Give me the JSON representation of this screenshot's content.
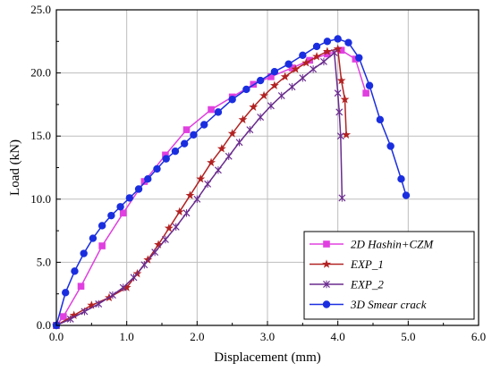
{
  "chart_data": {
    "type": "line",
    "title": "",
    "xlabel": "Displacement (mm)",
    "ylabel": "Load (kN)",
    "xlim": [
      0,
      6
    ],
    "ylim": [
      0,
      25
    ],
    "x_ticks": [
      0,
      1,
      2,
      3,
      4,
      5,
      6
    ],
    "y_ticks": [
      0,
      5,
      10,
      15,
      20,
      25
    ],
    "x_tick_labels": [
      "0.0",
      "1.0",
      "2.0",
      "3.0",
      "4.0",
      "5.0",
      "6.0"
    ],
    "y_tick_labels": [
      "0.0",
      "5.0",
      "10.0",
      "15.0",
      "20.0",
      "25.0"
    ],
    "grid": true,
    "legend_position": "bottom-right",
    "series": [
      {
        "name": "2D Hashin+CZM",
        "color": "#e040e0",
        "marker": "square",
        "x": [
          0.0,
          0.1,
          0.35,
          0.65,
          0.95,
          1.25,
          1.55,
          1.85,
          2.2,
          2.5,
          2.8,
          3.05,
          3.35,
          3.6,
          3.85,
          4.05,
          4.25,
          4.4
        ],
        "y": [
          0.0,
          0.7,
          3.1,
          6.3,
          8.9,
          11.4,
          13.5,
          15.5,
          17.1,
          18.1,
          19.1,
          19.7,
          20.4,
          21.0,
          21.5,
          21.8,
          21.1,
          18.4
        ]
      },
      {
        "name": "EXP_1",
        "color": "#b22222",
        "marker": "star",
        "x": [
          0.0,
          0.25,
          0.5,
          0.75,
          1.0,
          1.15,
          1.3,
          1.45,
          1.6,
          1.75,
          1.9,
          2.05,
          2.2,
          2.35,
          2.5,
          2.65,
          2.8,
          2.95,
          3.1,
          3.25,
          3.4,
          3.55,
          3.7,
          3.85,
          4.0,
          4.05,
          4.1,
          4.12
        ],
        "y": [
          0.0,
          0.8,
          1.6,
          2.2,
          3.0,
          4.1,
          5.2,
          6.4,
          7.7,
          9.0,
          10.3,
          11.6,
          12.9,
          14.0,
          15.2,
          16.3,
          17.3,
          18.2,
          19.0,
          19.7,
          20.3,
          20.8,
          21.3,
          21.7,
          21.9,
          19.4,
          17.9,
          15.1
        ]
      },
      {
        "name": "EXP_2",
        "color": "#6a2c8e",
        "marker": "x",
        "x": [
          0.0,
          0.2,
          0.4,
          0.6,
          0.8,
          0.95,
          1.1,
          1.25,
          1.4,
          1.55,
          1.7,
          1.85,
          2.0,
          2.15,
          2.3,
          2.45,
          2.6,
          2.75,
          2.9,
          3.05,
          3.2,
          3.35,
          3.5,
          3.65,
          3.8,
          3.95,
          4.0,
          4.02,
          4.04,
          4.06
        ],
        "y": [
          0.0,
          0.5,
          1.1,
          1.7,
          2.4,
          3.0,
          3.8,
          4.8,
          5.8,
          6.8,
          7.8,
          8.9,
          10.0,
          11.2,
          12.3,
          13.4,
          14.5,
          15.5,
          16.5,
          17.4,
          18.2,
          18.9,
          19.6,
          20.3,
          20.9,
          21.6,
          18.4,
          16.9,
          15.0,
          10.1
        ]
      },
      {
        "name": "3D Smear crack",
        "color": "#1a2ee0",
        "marker": "circle",
        "x": [
          0.0,
          0.13,
          0.26,
          0.39,
          0.52,
          0.65,
          0.78,
          0.91,
          1.04,
          1.17,
          1.3,
          1.43,
          1.56,
          1.69,
          1.82,
          1.95,
          2.1,
          2.3,
          2.5,
          2.7,
          2.9,
          3.1,
          3.3,
          3.5,
          3.7,
          3.85,
          4.0,
          4.15,
          4.3,
          4.45,
          4.6,
          4.75,
          4.9,
          4.97
        ],
        "y": [
          0.0,
          2.6,
          4.3,
          5.7,
          6.9,
          7.9,
          8.7,
          9.4,
          10.1,
          10.8,
          11.6,
          12.4,
          13.2,
          13.8,
          14.4,
          15.1,
          15.9,
          16.9,
          17.9,
          18.7,
          19.4,
          20.1,
          20.7,
          21.4,
          22.1,
          22.5,
          22.7,
          22.4,
          21.2,
          19.0,
          16.3,
          14.2,
          11.6,
          10.3
        ]
      }
    ]
  }
}
